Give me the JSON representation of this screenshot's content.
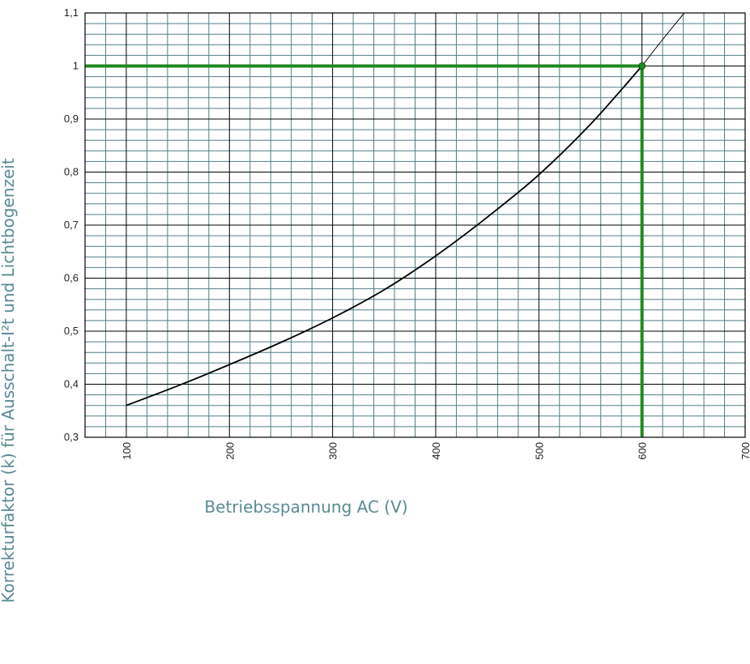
{
  "chart_data": {
    "type": "line",
    "title": "",
    "xlabel": "Betriebsspannung AC (V)",
    "ylabel": "Korrekturfaktor (k) für Ausschalt-I²t und Lichtbogenzeit",
    "xlim": [
      60,
      700
    ],
    "ylim": [
      0.3,
      1.1
    ],
    "x_ticks": [
      "100",
      "200",
      "300",
      "400",
      "500",
      "600",
      "700"
    ],
    "y_ticks": [
      "0,3",
      "0,4",
      "0,5",
      "0,6",
      "0,7",
      "0,8",
      "0,9",
      "1",
      "1,1"
    ],
    "grid": true,
    "series": [
      {
        "color": "#000000",
        "points": [
          [
            100,
            0.36
          ],
          [
            150,
            0.397
          ],
          [
            200,
            0.437
          ],
          [
            250,
            0.479
          ],
          [
            300,
            0.525
          ],
          [
            350,
            0.578
          ],
          [
            400,
            0.642
          ],
          [
            450,
            0.715
          ],
          [
            500,
            0.795
          ],
          [
            550,
            0.89
          ],
          [
            600,
            1.0
          ]
        ]
      },
      {
        "color": "#000000",
        "style": "thin",
        "points": [
          [
            600,
            1.0
          ],
          [
            620,
            1.05
          ],
          [
            641,
            1.1
          ]
        ]
      }
    ],
    "reference": {
      "x": 600,
      "y": 1.0,
      "color": "#1e8a1e"
    },
    "grid_color": "#4f7e86"
  }
}
